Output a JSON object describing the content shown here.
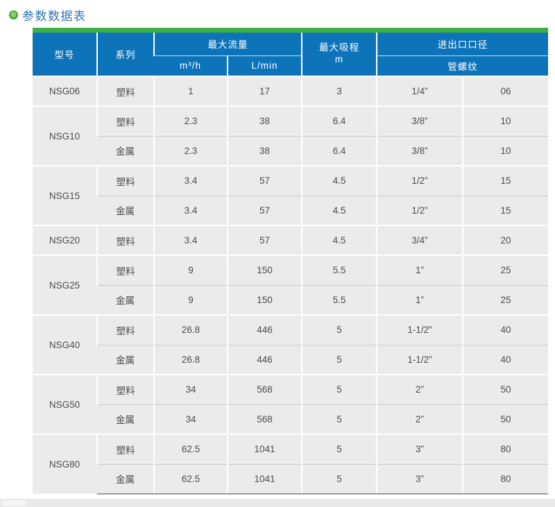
{
  "page": {
    "title": "参数数据表"
  },
  "colors": {
    "accent_green": "#3fb046",
    "header_blue": "#0d74ba",
    "title_blue": "#3274b5",
    "cell_bg": "#ebebeb",
    "cell_text": "#4c4c4c",
    "grid_line": "#c9c9c9",
    "table_bottom_line": "#9b9b9b",
    "page_strip": "#e9e9e9"
  },
  "table": {
    "headers": {
      "model": "型号",
      "series": "系列",
      "max_flow": "最大流量",
      "flow_unit_m3h": "m³/h",
      "flow_unit_lmin": "L/min",
      "max_suction": "最大吸程",
      "suction_unit": "m",
      "port_size": "进出口口径",
      "pipe_thread": "管螺纹"
    },
    "groups": [
      {
        "model": "NSG06",
        "rows": [
          {
            "series": "塑料",
            "m3h": "1",
            "lmin": "17",
            "suction": "3",
            "thread": "1/4”",
            "dn": "06"
          }
        ]
      },
      {
        "model": "NSG10",
        "rows": [
          {
            "series": "塑料",
            "m3h": "2.3",
            "lmin": "38",
            "suction": "6.4",
            "thread": "3/8”",
            "dn": "10"
          },
          {
            "series": "金属",
            "m3h": "2.3",
            "lmin": "38",
            "suction": "6.4",
            "thread": "3/8”",
            "dn": "10"
          }
        ]
      },
      {
        "model": "NSG15",
        "rows": [
          {
            "series": "塑料",
            "m3h": "3.4",
            "lmin": "57",
            "suction": "4.5",
            "thread": "1/2”",
            "dn": "15"
          },
          {
            "series": "金属",
            "m3h": "3.4",
            "lmin": "57",
            "suction": "4.5",
            "thread": "1/2”",
            "dn": "15"
          }
        ]
      },
      {
        "model": "NSG20",
        "rows": [
          {
            "series": "塑料",
            "m3h": "3.4",
            "lmin": "57",
            "suction": "4.5",
            "thread": "3/4”",
            "dn": "20"
          }
        ]
      },
      {
        "model": "NSG25",
        "rows": [
          {
            "series": "塑料",
            "m3h": "9",
            "lmin": "150",
            "suction": "5.5",
            "thread": "1”",
            "dn": "25"
          },
          {
            "series": "金属",
            "m3h": "9",
            "lmin": "150",
            "suction": "5.5",
            "thread": "1”",
            "dn": "25"
          }
        ]
      },
      {
        "model": "NSG40",
        "rows": [
          {
            "series": "塑料",
            "m3h": "26.8",
            "lmin": "446",
            "suction": "5",
            "thread": "1-1/2”",
            "dn": "40"
          },
          {
            "series": "金属",
            "m3h": "26.8",
            "lmin": "446",
            "suction": "5",
            "thread": "1-1/2”",
            "dn": "40"
          }
        ]
      },
      {
        "model": "NSG50",
        "rows": [
          {
            "series": "塑料",
            "m3h": "34",
            "lmin": "568",
            "suction": "5",
            "thread": "2”",
            "dn": "50"
          },
          {
            "series": "金属",
            "m3h": "34",
            "lmin": "568",
            "suction": "5",
            "thread": "2”",
            "dn": "50"
          }
        ]
      },
      {
        "model": "NSG80",
        "rows": [
          {
            "series": "塑料",
            "m3h": "62.5",
            "lmin": "1041",
            "suction": "5",
            "thread": "3”",
            "dn": "80"
          },
          {
            "series": "金属",
            "m3h": "62.5",
            "lmin": "1041",
            "suction": "5",
            "thread": "3”",
            "dn": "80"
          }
        ]
      }
    ]
  }
}
